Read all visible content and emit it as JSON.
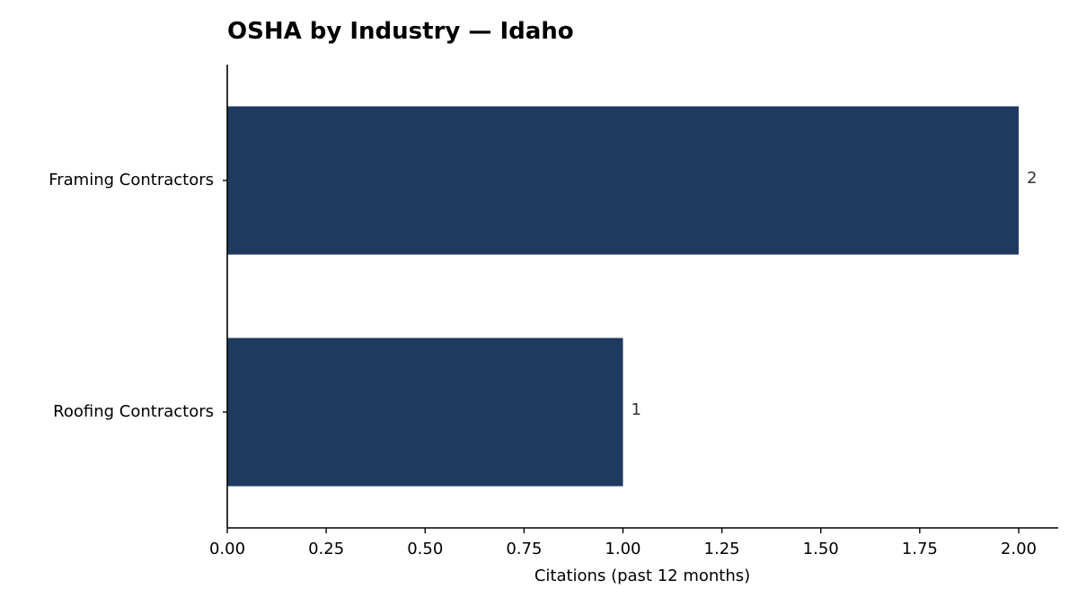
{
  "chart_data": {
    "type": "bar",
    "orientation": "horizontal",
    "title": "OSHA by Industry — Idaho",
    "xlabel": "Citations (past 12 months)",
    "ylabel": "",
    "categories": [
      "Framing Contractors",
      "Roofing Contractors"
    ],
    "values": [
      2,
      1
    ],
    "value_labels": [
      "2",
      "1"
    ],
    "xlim": [
      0,
      2.1
    ],
    "xticks": [
      0,
      0.25,
      0.5,
      0.75,
      1.0,
      1.25,
      1.5,
      1.75,
      2.0
    ],
    "xtick_labels": [
      "0.00",
      "0.25",
      "0.50",
      "0.75",
      "1.00",
      "1.25",
      "1.50",
      "1.75",
      "2.00"
    ],
    "grid": false,
    "legend": "none",
    "bar_color": "#1f3a5f"
  }
}
